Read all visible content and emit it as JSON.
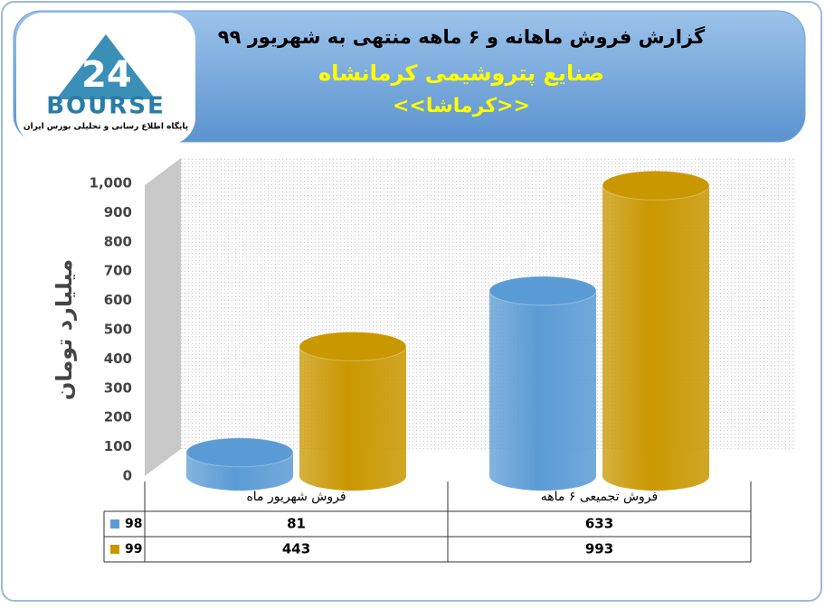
{
  "logo": {
    "text": "BOURSE",
    "tagline": "پایگاه اطلاع رسانی و تحلیلی بورس ایران"
  },
  "chart_data": {
    "type": "cylinder-bar",
    "title": "گزارش فروش ماهانه و ۶ ماهه منتهی به شهریور ۹۹",
    "subtitle": "صنایع پتروشیمی کرمانشاه",
    "company": "<<کرماشا>>",
    "y_label": "میلیارد تومان",
    "categories": [
      "فروش شهریور  ماه",
      "فروش تجمیعی ۶ ماهه"
    ],
    "series": [
      {
        "name": "98",
        "color": "#5b9bd5",
        "values": [
          81,
          633
        ]
      },
      {
        "name": "99",
        "color": "#c99700",
        "values": [
          443,
          993
        ]
      }
    ],
    "ylim": [
      0,
      1000
    ],
    "yticks": [
      0,
      100,
      200,
      300,
      400,
      500,
      600,
      700,
      800,
      900,
      {
        "value": 1000,
        "label": "1,000"
      }
    ],
    "grid": false,
    "data_table": true
  }
}
